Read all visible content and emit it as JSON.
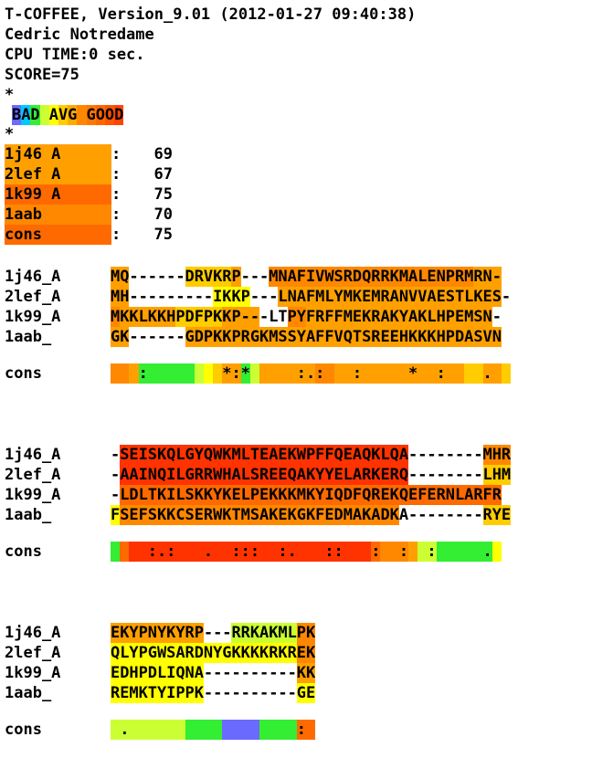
{
  "header": {
    "line1": "T-COFFEE, Version_9.01 (2012-01-27 09:40:38)",
    "line2": "Cedric Notredame",
    "line3": "CPU TIME:0 sec.",
    "line4": "SCORE=75",
    "star1": "*",
    "star2": "*"
  },
  "legend": {
    "items": [
      {
        "ch": "B",
        "color": "#6a6aff"
      },
      {
        "ch": "A",
        "color": "#00c8ff"
      },
      {
        "ch": "D",
        "color": "#33ee33"
      },
      {
        "ch": " ",
        "color": "#ccff33"
      },
      {
        "ch": "A",
        "color": "#ffff00"
      },
      {
        "ch": "V",
        "color": "#ffcc00"
      },
      {
        "ch": "G",
        "color": "#ffaa00"
      },
      {
        "ch": " ",
        "color": "#ff8800"
      },
      {
        "ch": "G",
        "color": "#ff7700"
      },
      {
        "ch": "O",
        "color": "#ff6600"
      },
      {
        "ch": "O",
        "color": "#ff5500"
      },
      {
        "ch": "D",
        "color": "#ff4400"
      }
    ]
  },
  "scores": [
    {
      "name": "1j46_A",
      "value": "69",
      "color": "#ffa000"
    },
    {
      "name": "2lef_A",
      "value": "67",
      "color": "#ffa000"
    },
    {
      "name": "1k99_A",
      "value": "75",
      "color": "#ff6a00"
    },
    {
      "name": "1aab_",
      "value": "70",
      "color": "#ff8800"
    },
    {
      "name": "cons",
      "value": "75",
      "color": "#ff6a00"
    }
  ],
  "colors": {
    "0": "#6a6aff",
    "1": "#00c8ff",
    "2": "#33ee33",
    "3": "#ccff33",
    "4": "#ffff00",
    "5": "#ffcc00",
    "6": "#ffa000",
    "7": "#ff8800",
    "8": "#ff6a00",
    "9": "#ff3300",
    "w": "#ffffff"
  },
  "blocks": [
    {
      "rows": [
        {
          "name": "1j46_A",
          "seq": "MQ------DRVKRP---MNAFIVWSRDQRRKMALENPRMRN-",
          "shade": "66wwwwww555556www77777777777777777777776666w"
        },
        {
          "name": "2lef_A",
          "seq": "MH---------IKKP---LNAFMLYMKEMRANVVAESTLKES-",
          "shade": "66wwwwwwwww4444www666666666666666666666666w"
        },
        {
          "name": "1k99_A",
          "seq": "MKKLKKHPDFPKKP---LTPYFRFFMEKRAKYAKLHPEMSN-",
          "shade": "7666666555556666www7766666666666666666666w"
        },
        {
          "name": "1aab_",
          "seq": "GK------GDPKKPRGKMSSYAFFVQTSREEHKKKHPDASVN",
          "shade": "66wwwwww66666666666666666666666666666666666"
        }
      ],
      "cons": {
        "name": "cons",
        "seq": "   :        *:*     :.:   :     *  :    .  ",
        "shade": "77622222234566236666667766666666666666556656"
      }
    },
    {
      "rows": [
        {
          "name": "1j46_A",
          "seq": "-SEISKQLGYQWKMLTEAEKWPFFQEAQKLQA--------MHR",
          "shade": "w9999999999999999999999999999999wwwwwwww777"
        },
        {
          "name": "2lef_A",
          "seq": "-AAINQILGRRWHALSREEQAKYYELARKERQ--------LHM",
          "shade": "w9999999999999999999999999999999wwwwwwww555"
        },
        {
          "name": "1k99_A",
          "seq": "-LDLTKILSKKYKELPEKKKMKYIQDFQREKQEFERNLARFR",
          "shade": "w88888888888888888888888888888888888888888"
        },
        {
          "name": "1aab_",
          "seq": "FSEFSKKCSERWKTMSAKEKGKFEDMAKADKA--------RYE",
          "shade": "4777777777777777777777777777777wwwwwwwww555"
        }
      ],
      "cons": {
        "name": "cons",
        "seq": "    :.:   .  :::  :.   ::   :  :  :     . ",
        "shade": "2899999999999999999999999999877763322222244"
      }
    },
    {
      "rows": [
        {
          "name": "1j46_A",
          "seq": "EKYPNYKYRP---RRKAKMLPK",
          "shade": "6666666666www333333377"
        },
        {
          "name": "2lef_A",
          "seq": "QLYPGWSARDNYGKKKKRKREK",
          "shade": "4444444444444444444477"
        },
        {
          "name": "1k99_A",
          "seq": "EDHPDLIQNA----------KK",
          "shade": "4444444444wwwwwwwwww66"
        },
        {
          "name": "1aab_",
          "seq": "REMKTYIPPK----------GE",
          "shade": "4444444444wwwwwwwwww44"
        }
      ],
      "cons": {
        "name": "cons",
        "seq": " .                  : ",
        "shade": "3333333322220000222288"
      }
    }
  ]
}
